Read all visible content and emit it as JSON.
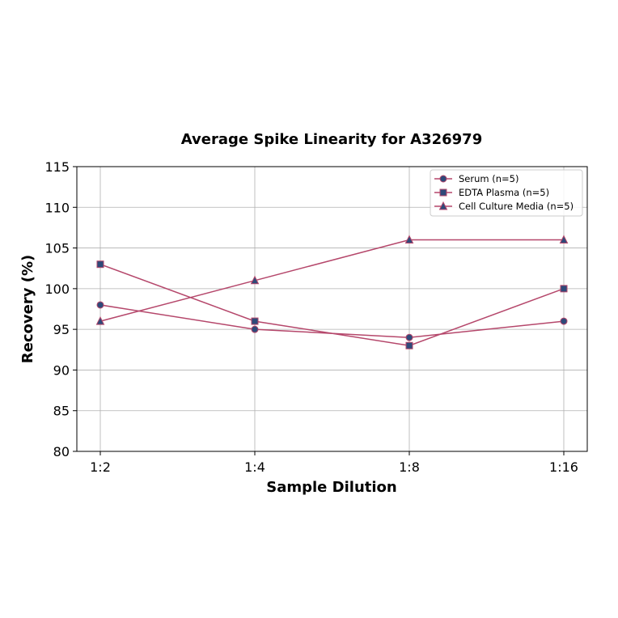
{
  "chart_data": {
    "type": "line",
    "title": "Average Spike Linearity for A326979",
    "xlabel": "Sample Dilution",
    "ylabel": "Recovery (%)",
    "categories": [
      "1:2",
      "1:4",
      "1:8",
      "1:16"
    ],
    "ylim": [
      80,
      115
    ],
    "yticks": [
      80,
      85,
      90,
      95,
      100,
      105,
      110,
      115
    ],
    "grid": true,
    "legend_position": "top-right",
    "line_color": "#b5476b",
    "marker_color": "#2e4a7a",
    "series": [
      {
        "name": "Serum (n=5)",
        "marker": "circle",
        "values": [
          98,
          95,
          94,
          96
        ]
      },
      {
        "name": "EDTA Plasma (n=5)",
        "marker": "square",
        "values": [
          103,
          96,
          93,
          100
        ]
      },
      {
        "name": "Cell Culture Media (n=5)",
        "marker": "triangle",
        "values": [
          96,
          101,
          106,
          106
        ]
      }
    ]
  }
}
